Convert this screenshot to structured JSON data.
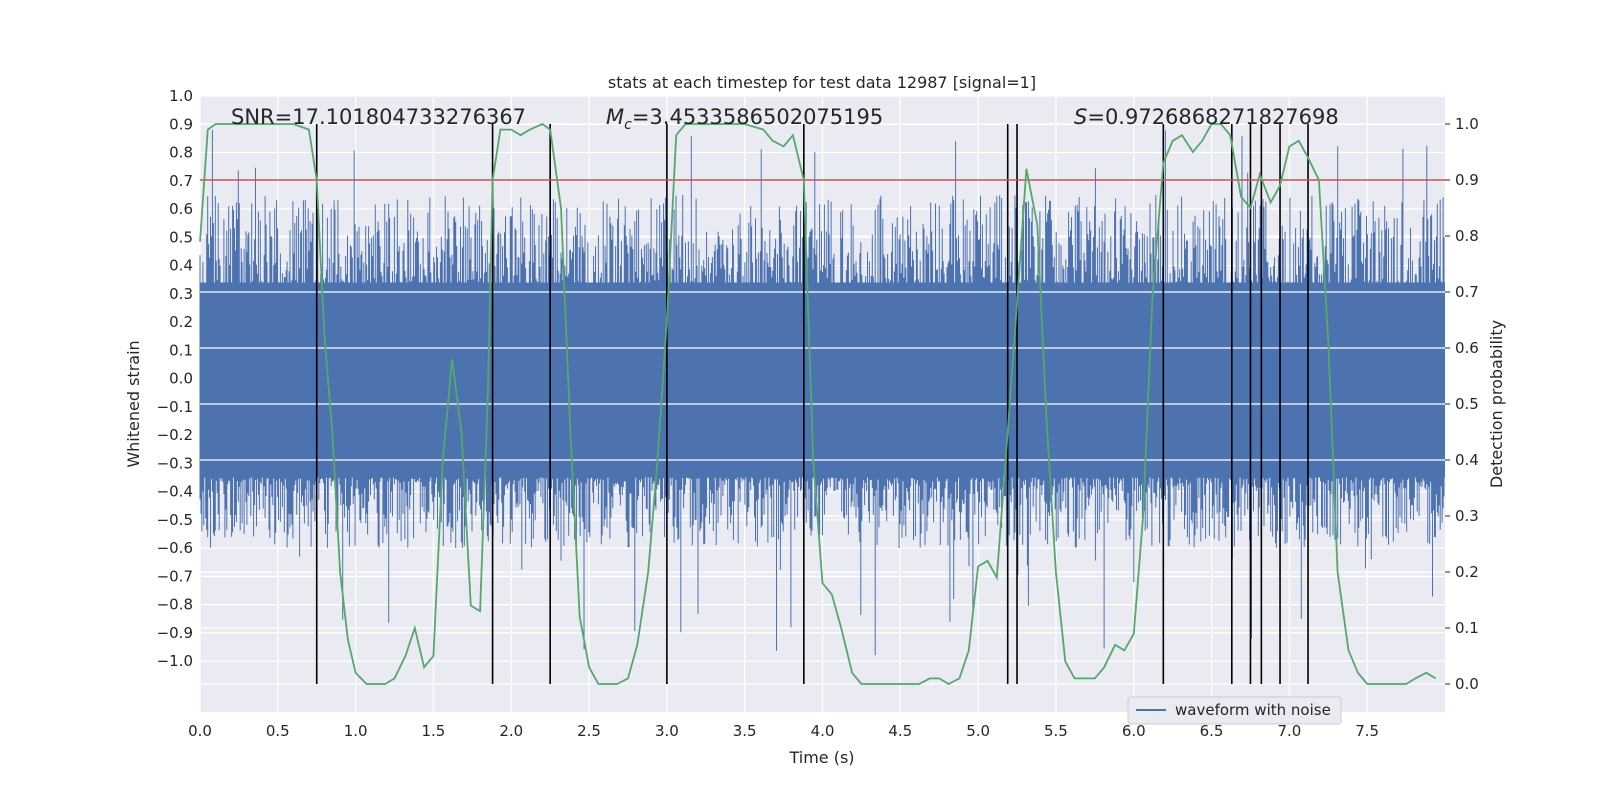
{
  "chart_data": {
    "type": "line",
    "title": "stats at each timestep for test data 12987 [signal=1]",
    "xlabel": "Time (s)",
    "ylabel_left": "Whitened strain",
    "ylabel_right": "Detection probability",
    "xlim": [
      0,
      8
    ],
    "ylim_left": [
      -1.18,
      1.0
    ],
    "ylim_right": [
      -0.05,
      1.05
    ],
    "x_ticks": [
      "0.0",
      "0.5",
      "1.0",
      "1.5",
      "2.0",
      "2.5",
      "3.0",
      "3.5",
      "4.0",
      "4.5",
      "5.0",
      "5.5",
      "6.0",
      "6.5",
      "7.0",
      "7.5"
    ],
    "y_left_ticks": [
      "1.0",
      "0.9",
      "0.8",
      "0.7",
      "0.6",
      "0.5",
      "0.4",
      "0.3",
      "0.2",
      "0.1",
      "0.0",
      "−0.1",
      "−0.2",
      "−0.3",
      "−0.4",
      "−0.5",
      "−0.6",
      "−0.7",
      "−0.8",
      "−0.9",
      "−1.0"
    ],
    "y_right_ticks": [
      "1.0",
      "0.9",
      "0.8",
      "0.7",
      "0.6",
      "0.5",
      "0.4",
      "0.3",
      "0.2",
      "0.1",
      "0.0"
    ],
    "annotations": {
      "snr": "SNR=17.101804733276367",
      "mc_symbol": "M",
      "mc_sub": "c",
      "mc_value": "=3.4533586502075195",
      "s_symbol": "S",
      "s_value": "=0.9726868271827698"
    },
    "threshold": 0.9,
    "vertical_lines": [
      0.75,
      1.88,
      2.25,
      3.0,
      3.88,
      5.19,
      5.25,
      6.19,
      6.63,
      6.75,
      6.82,
      6.94,
      7.12
    ],
    "waveform": {
      "name": "waveform with noise",
      "noise_bounds": [
        -0.35,
        0.34
      ],
      "typical_peak_range": [
        0.3,
        0.65
      ],
      "max_positive": 0.9,
      "min_negative": -1.0
    },
    "probability_series": {
      "name": "detection probability",
      "x": [
        0.0,
        0.05,
        0.1,
        0.2,
        0.3,
        0.4,
        0.5,
        0.6,
        0.7,
        0.75,
        0.8,
        0.85,
        0.9,
        0.95,
        1.0,
        1.07,
        1.13,
        1.19,
        1.25,
        1.32,
        1.38,
        1.44,
        1.5,
        1.56,
        1.62,
        1.68,
        1.74,
        1.8,
        1.85,
        1.88,
        1.93,
        2.0,
        2.06,
        2.12,
        2.2,
        2.25,
        2.32,
        2.38,
        2.44,
        2.5,
        2.56,
        2.62,
        2.68,
        2.75,
        2.81,
        2.88,
        2.94,
        3.0,
        3.06,
        3.12,
        3.2,
        3.5,
        3.62,
        3.68,
        3.75,
        3.81,
        3.88,
        3.94,
        4.0,
        4.06,
        4.12,
        4.19,
        4.25,
        4.31,
        4.38,
        4.5,
        4.62,
        4.69,
        4.75,
        4.81,
        4.88,
        4.94,
        5.0,
        5.06,
        5.12,
        5.19,
        5.25,
        5.31,
        5.38,
        5.44,
        5.5,
        5.56,
        5.62,
        5.69,
        5.75,
        5.81,
        5.88,
        5.94,
        6.0,
        6.06,
        6.12,
        6.19,
        6.25,
        6.31,
        6.38,
        6.44,
        6.5,
        6.56,
        6.62,
        6.69,
        6.75,
        6.81,
        6.88,
        6.94,
        7.0,
        7.06,
        7.12,
        7.19,
        7.25,
        7.31,
        7.38,
        7.44,
        7.5,
        7.56,
        7.62,
        7.69,
        7.75,
        7.81,
        7.88,
        7.94
      ],
      "y": [
        0.79,
        0.99,
        1.0,
        1.0,
        1.0,
        1.0,
        1.0,
        1.0,
        0.99,
        0.9,
        0.62,
        0.45,
        0.2,
        0.08,
        0.02,
        0.0,
        0.0,
        0.0,
        0.01,
        0.05,
        0.1,
        0.03,
        0.05,
        0.4,
        0.58,
        0.45,
        0.14,
        0.13,
        0.52,
        0.9,
        0.99,
        0.99,
        0.98,
        0.99,
        1.0,
        0.99,
        0.85,
        0.45,
        0.12,
        0.03,
        0.0,
        0.0,
        0.0,
        0.01,
        0.07,
        0.2,
        0.4,
        0.65,
        0.98,
        1.0,
        1.0,
        1.0,
        0.99,
        0.97,
        0.96,
        0.98,
        0.9,
        0.4,
        0.18,
        0.16,
        0.1,
        0.02,
        0.0,
        0.0,
        0.0,
        0.0,
        0.0,
        0.01,
        0.01,
        0.0,
        0.01,
        0.06,
        0.21,
        0.22,
        0.19,
        0.45,
        0.68,
        0.92,
        0.82,
        0.47,
        0.2,
        0.04,
        0.01,
        0.01,
        0.01,
        0.03,
        0.07,
        0.06,
        0.09,
        0.3,
        0.69,
        0.93,
        0.97,
        0.98,
        0.95,
        0.97,
        1.0,
        1.0,
        0.98,
        0.87,
        0.85,
        0.91,
        0.86,
        0.89,
        0.96,
        0.97,
        0.94,
        0.9,
        0.61,
        0.2,
        0.06,
        0.02,
        0.0,
        0.0,
        0.0,
        0.0,
        0.0,
        0.01,
        0.02,
        0.01
      ]
    },
    "legend": {
      "label": "waveform with noise",
      "placement": "lower-right"
    },
    "colors": {
      "waveform": "#4c72b0",
      "probability": "#55a868",
      "threshold": "#c44e52",
      "vlines": "#000000"
    }
  }
}
